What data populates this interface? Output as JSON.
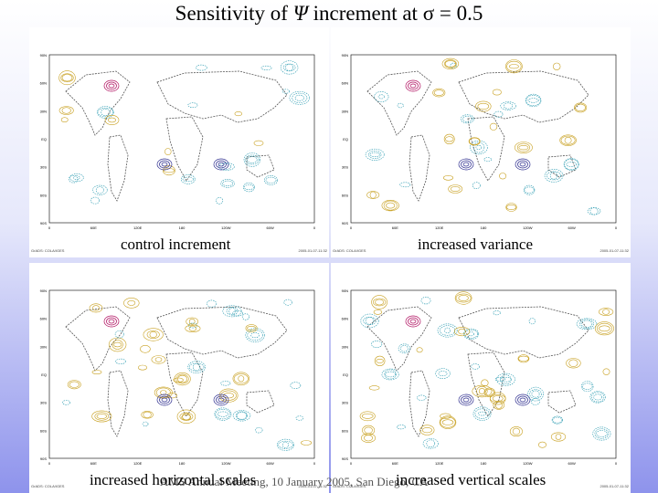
{
  "title": {
    "prefix": "Sensitivity of",
    "psi": "Ψ",
    "middle": "increment at",
    "sigma": "σ",
    "suffix": "= 0.5"
  },
  "panels": [
    {
      "caption": "control increment"
    },
    {
      "caption": "increased variance"
    },
    {
      "caption": "increased horizontal scales"
    },
    {
      "caption": "increased vertical scales"
    }
  ],
  "map": {
    "lat_labels": [
      "90N",
      "60N",
      "30N",
      "EQ",
      "30S",
      "60S",
      "90S"
    ],
    "lon_labels": [
      "0",
      "60E",
      "120E",
      "180",
      "120W",
      "60W",
      "0"
    ],
    "credit_left": "GrADS: COLA/IGES",
    "credit_right": "2005-01-07-11:32"
  },
  "footer": "AMS Annual Meeting, 10 January 2005, San Diego, CA",
  "colors": {
    "background_top": "#ffffff",
    "background_bottom": "#8e93ec",
    "continent": "#555555",
    "positive_contour": "#c8a020",
    "negative_contour": "#2a9ab0",
    "strong_positive": "#b01060",
    "strong_negative": "#303090"
  }
}
